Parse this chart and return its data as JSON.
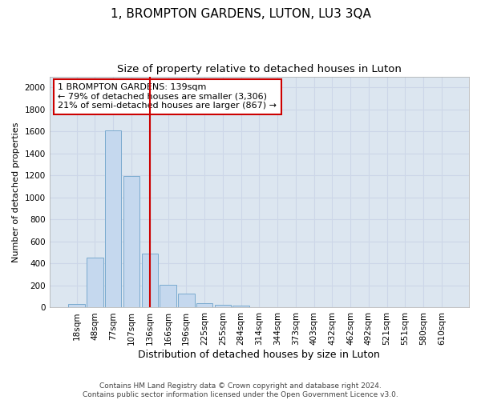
{
  "title": "1, BROMPTON GARDENS, LUTON, LU3 3QA",
  "subtitle": "Size of property relative to detached houses in Luton",
  "xlabel": "Distribution of detached houses by size in Luton",
  "ylabel": "Number of detached properties",
  "categories": [
    "18sqm",
    "48sqm",
    "77sqm",
    "107sqm",
    "136sqm",
    "166sqm",
    "196sqm",
    "225sqm",
    "255sqm",
    "284sqm",
    "314sqm",
    "344sqm",
    "373sqm",
    "403sqm",
    "432sqm",
    "462sqm",
    "492sqm",
    "521sqm",
    "551sqm",
    "580sqm",
    "610sqm"
  ],
  "values": [
    30,
    455,
    1610,
    1195,
    490,
    210,
    130,
    40,
    25,
    15,
    0,
    0,
    0,
    0,
    0,
    0,
    0,
    0,
    0,
    0,
    0
  ],
  "bar_color": "#c5d8ee",
  "bar_edge_color": "#7aaacf",
  "vline_index": 4,
  "vline_color": "#cc0000",
  "annotation_line1": "1 BROMPTON GARDENS: 139sqm",
  "annotation_line2": "← 79% of detached houses are smaller (3,306)",
  "annotation_line3": "21% of semi-detached houses are larger (867) →",
  "annotation_box_color": "#ffffff",
  "annotation_box_edge_color": "#cc0000",
  "ylim": [
    0,
    2100
  ],
  "yticks": [
    0,
    200,
    400,
    600,
    800,
    1000,
    1200,
    1400,
    1600,
    1800,
    2000
  ],
  "grid_color": "#ccd6e8",
  "background_color": "#dce6f0",
  "footer_line1": "Contains HM Land Registry data © Crown copyright and database right 2024.",
  "footer_line2": "Contains public sector information licensed under the Open Government Licence v3.0.",
  "title_fontsize": 11,
  "subtitle_fontsize": 9.5,
  "xlabel_fontsize": 9,
  "ylabel_fontsize": 8,
  "tick_fontsize": 7.5,
  "annotation_fontsize": 8,
  "footer_fontsize": 6.5
}
